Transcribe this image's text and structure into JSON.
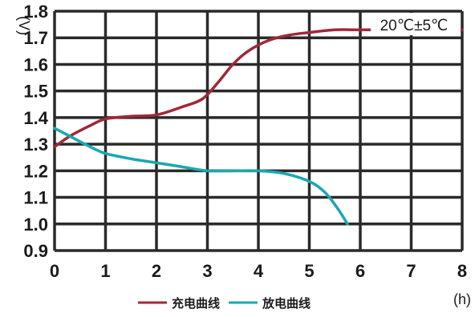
{
  "chart_data": {
    "type": "line",
    "title": "",
    "annotation": "20℃±5℃",
    "ylabel": "(V)",
    "xlabel": "(h)",
    "xlim": [
      0,
      8
    ],
    "ylim": [
      0.9,
      1.8
    ],
    "xticks": [
      "0",
      "1",
      "2",
      "3",
      "4",
      "5",
      "6",
      "7",
      "8"
    ],
    "yticks": [
      "0.9",
      "1.0",
      "1.1",
      "1.2",
      "1.3",
      "1.4",
      "1.5",
      "1.6",
      "1.7",
      "1.8"
    ],
    "grid": true,
    "legend_position": "bottom",
    "series": [
      {
        "name": "充电曲线",
        "color": "#a02838",
        "points": [
          [
            0,
            1.29
          ],
          [
            0.3,
            1.33
          ],
          [
            0.7,
            1.37
          ],
          [
            1.0,
            1.395
          ],
          [
            1.5,
            1.405
          ],
          [
            2.0,
            1.41
          ],
          [
            2.5,
            1.44
          ],
          [
            2.9,
            1.47
          ],
          [
            3.2,
            1.53
          ],
          [
            3.5,
            1.6
          ],
          [
            3.8,
            1.65
          ],
          [
            4.2,
            1.69
          ],
          [
            4.6,
            1.71
          ],
          [
            5.0,
            1.72
          ],
          [
            5.5,
            1.73
          ],
          [
            6.0,
            1.73
          ],
          [
            7.0,
            1.73
          ],
          [
            8.0,
            1.73
          ]
        ]
      },
      {
        "name": "放电曲线",
        "color": "#1aa8b0",
        "points": [
          [
            0,
            1.36
          ],
          [
            0.3,
            1.33
          ],
          [
            0.7,
            1.29
          ],
          [
            1.0,
            1.265
          ],
          [
            1.5,
            1.245
          ],
          [
            2.0,
            1.23
          ],
          [
            2.5,
            1.215
          ],
          [
            3.0,
            1.2
          ],
          [
            3.5,
            1.2
          ],
          [
            4.0,
            1.2
          ],
          [
            4.5,
            1.19
          ],
          [
            5.0,
            1.16
          ],
          [
            5.3,
            1.12
          ],
          [
            5.55,
            1.06
          ],
          [
            5.75,
            1.0
          ]
        ]
      }
    ]
  }
}
